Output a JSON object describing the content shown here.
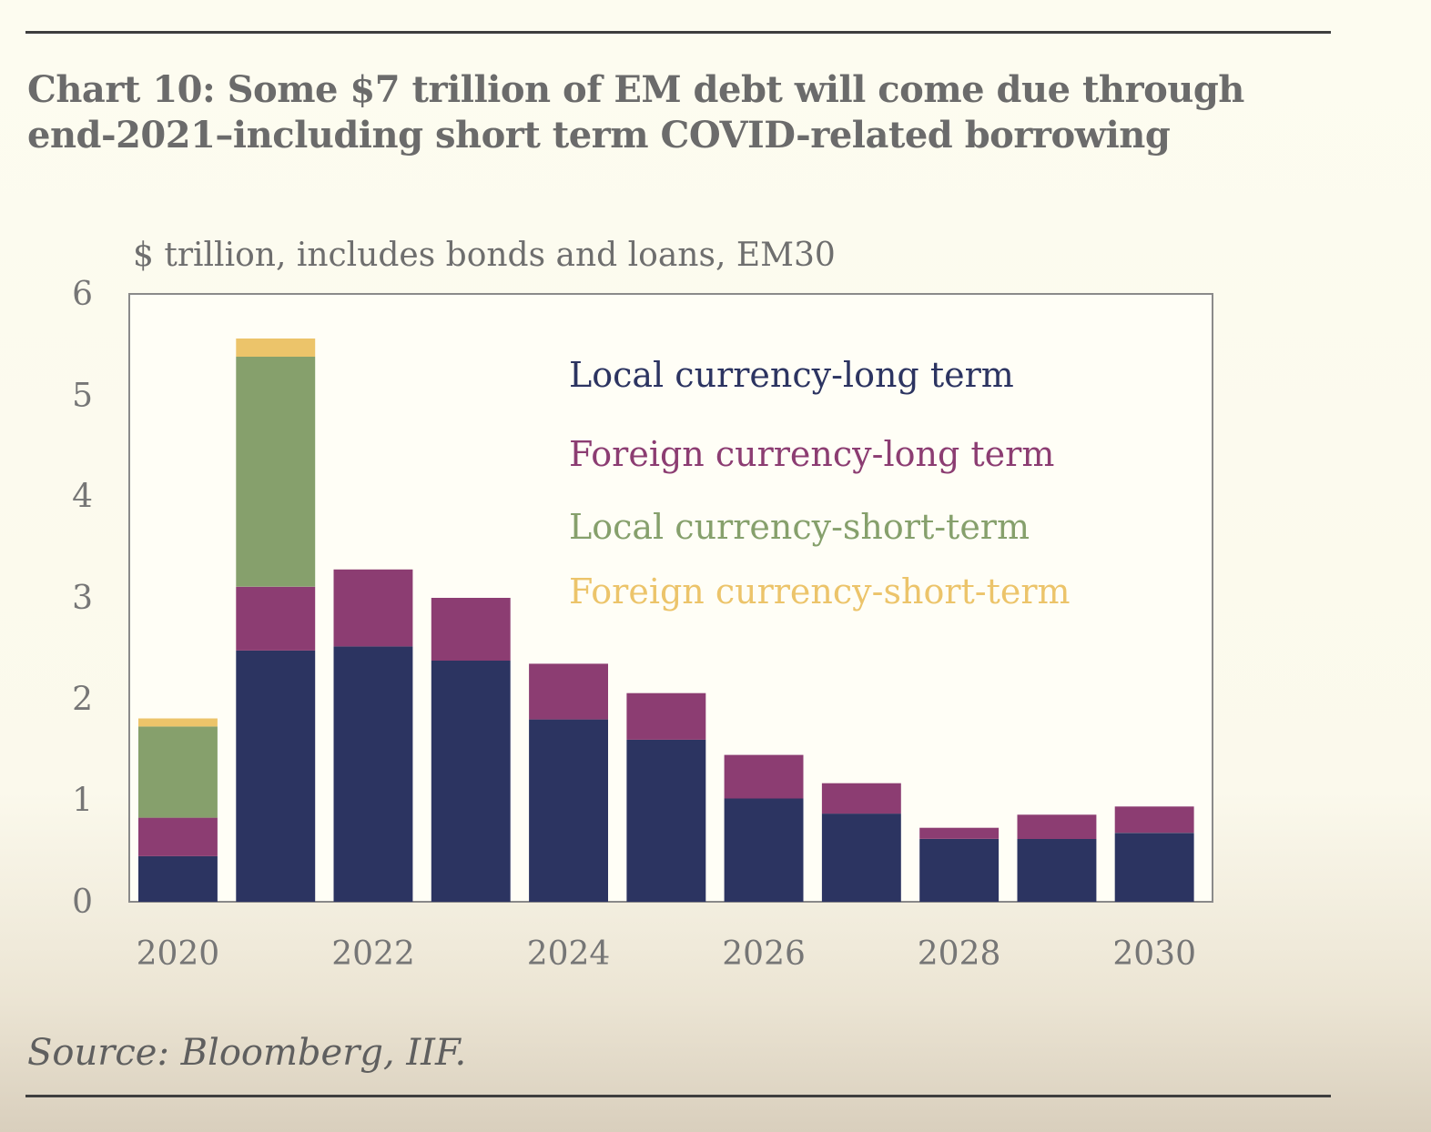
{
  "header": {
    "title_line1": "Chart 10:  Some $7 trillion of EM debt will come due through",
    "title_line2": "end-2021–including short term COVID-related borrowing"
  },
  "footer": {
    "source": "Source: Bloomberg, IIF."
  },
  "chart_data": {
    "type": "bar",
    "stacked": true,
    "ylabel": "$ trillion, includes bonds and loans, EM30",
    "ylim": [
      0,
      6
    ],
    "yticks": [
      0,
      1,
      2,
      3,
      4,
      5,
      6
    ],
    "categories": [
      "2020",
      "2021",
      "2022",
      "2023",
      "2024",
      "2025",
      "2026",
      "2027",
      "2028",
      "2029",
      "2030"
    ],
    "xtick_labels": [
      "2020",
      "2022",
      "2024",
      "2026",
      "2028",
      "2030"
    ],
    "legend_position": "top-right",
    "grid": false,
    "series": [
      {
        "name": "Local currency-long term",
        "color": "#2c3461",
        "values": [
          0.45,
          2.48,
          2.52,
          2.38,
          1.8,
          1.6,
          1.02,
          0.87,
          0.62,
          0.62,
          0.68
        ]
      },
      {
        "name": "Foreign currency-long term",
        "color": "#8c3d72",
        "values": [
          0.38,
          0.63,
          0.76,
          0.62,
          0.55,
          0.46,
          0.43,
          0.3,
          0.11,
          0.24,
          0.26
        ]
      },
      {
        "name": "Local currency-short-term",
        "color": "#86a06c",
        "values": [
          0.9,
          2.27,
          0,
          0,
          0,
          0,
          0,
          0,
          0,
          0,
          0
        ]
      },
      {
        "name": "Foreign currency-short-term",
        "color": "#ecc46a",
        "values": [
          0.08,
          0.18,
          0,
          0,
          0,
          0,
          0,
          0,
          0,
          0,
          0
        ]
      }
    ]
  }
}
